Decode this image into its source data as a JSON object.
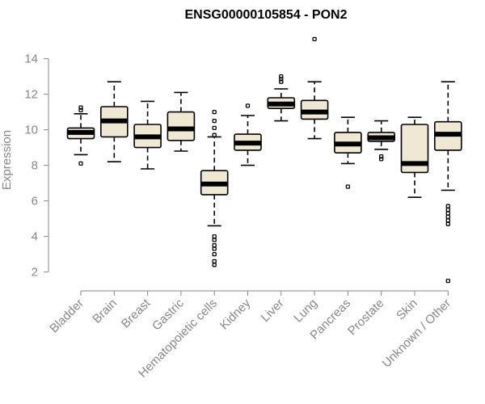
{
  "chart_data": {
    "type": "boxplot",
    "title": "ENSG00000105854 - PON2",
    "xlabel": "",
    "ylabel": "Expression",
    "ylim": [
      1.3,
      15.3
    ],
    "yticks": [
      2,
      4,
      6,
      8,
      10,
      12,
      14
    ],
    "box_color": "#efe8d2",
    "categories": [
      "Bladder",
      "Brain",
      "Breast",
      "Gastric",
      "Hematopoietic cells",
      "Kidney",
      "Liver",
      "Lung",
      "Pancreas",
      "Prostate",
      "Skin",
      "Unknown / Other"
    ],
    "series": [
      {
        "name": "Bladder",
        "whisker_low": 8.6,
        "q1": 9.5,
        "median": 9.85,
        "q3": 10.1,
        "whisker_high": 10.9,
        "outliers": [
          8.1,
          11.1,
          11.25
        ]
      },
      {
        "name": "Brain",
        "whisker_low": 8.2,
        "q1": 9.6,
        "median": 10.5,
        "q3": 11.3,
        "whisker_high": 12.7,
        "outliers": []
      },
      {
        "name": "Breast",
        "whisker_low": 7.8,
        "q1": 9.0,
        "median": 9.6,
        "q3": 10.3,
        "whisker_high": 11.6,
        "outliers": []
      },
      {
        "name": "Gastric",
        "whisker_low": 8.8,
        "q1": 9.4,
        "median": 10.05,
        "q3": 11.0,
        "whisker_high": 12.1,
        "outliers": []
      },
      {
        "name": "Hematopoietic cells",
        "whisker_low": 4.6,
        "q1": 6.35,
        "median": 6.95,
        "q3": 7.7,
        "whisker_high": 9.6,
        "outliers": [
          2.4,
          2.6,
          3.0,
          3.3,
          3.5,
          3.8,
          4.0,
          9.7,
          10.1,
          10.5,
          11.0
        ]
      },
      {
        "name": "Kidney",
        "whisker_low": 8.0,
        "q1": 8.85,
        "median": 9.25,
        "q3": 9.75,
        "whisker_high": 10.8,
        "outliers": [
          11.35
        ]
      },
      {
        "name": "Liver",
        "whisker_low": 10.5,
        "q1": 11.2,
        "median": 11.45,
        "q3": 11.8,
        "whisker_high": 12.3,
        "outliers": [
          12.7,
          12.85,
          13.0
        ]
      },
      {
        "name": "Lung",
        "whisker_low": 9.5,
        "q1": 10.6,
        "median": 11.0,
        "q3": 11.65,
        "whisker_high": 12.7,
        "outliers": [
          15.1
        ]
      },
      {
        "name": "Pancreas",
        "whisker_low": 8.1,
        "q1": 8.7,
        "median": 9.2,
        "q3": 9.85,
        "whisker_high": 10.7,
        "outliers": [
          6.8
        ]
      },
      {
        "name": "Prostate",
        "whisker_low": 8.9,
        "q1": 9.35,
        "median": 9.55,
        "q3": 9.85,
        "whisker_high": 10.5,
        "outliers": [
          8.35,
          8.5
        ]
      },
      {
        "name": "Skin",
        "whisker_low": 6.2,
        "q1": 7.6,
        "median": 8.1,
        "q3": 10.3,
        "whisker_high": 10.7,
        "outliers": []
      },
      {
        "name": "Unknown / Other",
        "whisker_low": 6.6,
        "q1": 8.85,
        "median": 9.75,
        "q3": 10.45,
        "whisker_high": 12.7,
        "outliers": [
          1.5,
          4.7,
          4.9,
          5.1,
          5.3,
          5.5,
          5.7
        ]
      }
    ]
  }
}
